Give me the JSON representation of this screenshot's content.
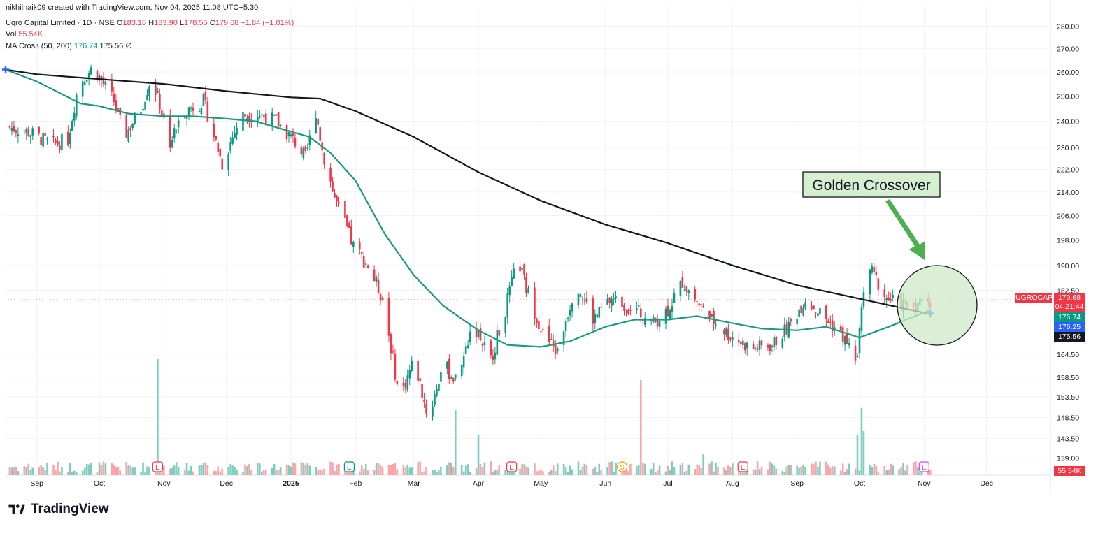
{
  "header": {
    "credit": "nikhilnaik09 created with TradingView.com, Nov 04, 2025 11:08 UTC+5:30",
    "symbol_line": {
      "name": "Ugro Capital Limited · 1D · NSE",
      "o_label": "O",
      "o_value": "183.16",
      "h_label": "H",
      "h_value": "183.90",
      "l_label": "L",
      "l_value": "178.55",
      "c_label": "C",
      "c_value": "179.68",
      "change": "−1.84 (−1.01%)"
    },
    "vol_line": {
      "label": "Vol",
      "value": "55.54K"
    },
    "ma_line": {
      "label": "MA Cross (50, 200)",
      "fast": "176.74",
      "slow": "175.56",
      "icon": "∅"
    }
  },
  "logo": {
    "text": "TradingView",
    "icon": "tradingview-logo-icon"
  },
  "annotation": {
    "text": "Golden Crossover",
    "fill": "#d6efd0",
    "arrow_color": "#4caf50",
    "circle_fill": "#cfe9c8"
  },
  "price_tags": {
    "symbol": "UGROCAP",
    "price": "179.68",
    "countdown": "04:21:44",
    "ma50": "176.74",
    "ma50_b": "176.25",
    "ma200": "175.56",
    "volume": "55.54K"
  },
  "colors": {
    "up": "#089981",
    "down": "#f23645",
    "ma50": "#1a9a80",
    "ma200": "#131722",
    "vol_up": "#7fcdc0",
    "vol_down": "#f7a6a9",
    "ma50_tag": "#089981",
    "ma50b_tag": "#2962ff",
    "ma200_tag": "#131722"
  },
  "chart_data": {
    "type": "candlestick",
    "title": "Ugro Capital Limited · 1D · NSE",
    "y_ticks": [
      "280.00",
      "270.00",
      "260.00",
      "250.00",
      "240.00",
      "230.00",
      "222.00",
      "214.00",
      "206.00",
      "198.00",
      "190.00",
      "182.50",
      "164.50",
      "158.50",
      "153.50",
      "148.50",
      "143.50",
      "139.00"
    ],
    "y_tick_values": [
      280,
      270,
      260,
      250,
      240,
      230,
      222,
      214,
      206,
      198,
      190,
      182.5,
      164.5,
      158.5,
      153.5,
      148.5,
      143.5,
      139
    ],
    "log_scale": true,
    "ylim": [
      136,
      284
    ],
    "x_ticks": [
      "Sep",
      "Oct",
      "Nov",
      "Dec",
      "2025",
      "Feb",
      "Mar",
      "Apr",
      "May",
      "Jun",
      "Jul",
      "Aug",
      "Sep",
      "Oct",
      "Nov",
      "Dec"
    ],
    "x_tick_dates": [
      "2024-09-01",
      "2024-10-01",
      "2024-11-01",
      "2024-12-01",
      "2025-01-01",
      "2025-02-01",
      "2025-03-01",
      "2025-04-01",
      "2025-05-01",
      "2025-06-01",
      "2025-07-01",
      "2025-08-01",
      "2025-09-01",
      "2025-10-01",
      "2025-11-01",
      "2025-12-01"
    ],
    "x_range": [
      "2024-08-17",
      "2025-12-31"
    ],
    "price_keypoints": [
      {
        "date": "2024-08-17",
        "close": 238
      },
      {
        "date": "2024-08-28",
        "close": 236
      },
      {
        "date": "2024-09-08",
        "close": 231
      },
      {
        "date": "2024-09-16",
        "close": 233
      },
      {
        "date": "2024-09-21",
        "close": 255
      },
      {
        "date": "2024-09-28",
        "close": 262
      },
      {
        "date": "2024-10-08",
        "close": 248
      },
      {
        "date": "2024-10-13",
        "close": 234
      },
      {
        "date": "2024-10-21",
        "close": 245
      },
      {
        "date": "2024-10-26",
        "close": 258
      },
      {
        "date": "2024-11-04",
        "close": 232
      },
      {
        "date": "2024-11-11",
        "close": 244
      },
      {
        "date": "2024-11-20",
        "close": 248
      },
      {
        "date": "2024-11-29",
        "close": 224
      },
      {
        "date": "2024-12-08",
        "close": 242
      },
      {
        "date": "2024-12-16",
        "close": 243
      },
      {
        "date": "2024-12-25",
        "close": 240
      },
      {
        "date": "2025-01-03",
        "close": 232
      },
      {
        "date": "2025-01-08",
        "close": 226
      },
      {
        "date": "2025-01-13",
        "close": 244
      },
      {
        "date": "2025-01-16",
        "close": 229
      },
      {
        "date": "2025-01-22",
        "close": 212
      },
      {
        "date": "2025-01-31",
        "close": 196
      },
      {
        "date": "2025-02-07",
        "close": 190
      },
      {
        "date": "2025-02-14",
        "close": 180
      },
      {
        "date": "2025-02-22",
        "close": 153
      },
      {
        "date": "2025-03-01",
        "close": 163
      },
      {
        "date": "2025-03-08",
        "close": 148
      },
      {
        "date": "2025-03-15",
        "close": 162
      },
      {
        "date": "2025-03-22",
        "close": 157
      },
      {
        "date": "2025-03-29",
        "close": 173
      },
      {
        "date": "2025-04-07",
        "close": 163
      },
      {
        "date": "2025-04-14",
        "close": 177
      },
      {
        "date": "2025-04-20",
        "close": 192
      },
      {
        "date": "2025-04-24",
        "close": 183
      },
      {
        "date": "2025-05-02",
        "close": 170
      },
      {
        "date": "2025-05-09",
        "close": 165
      },
      {
        "date": "2025-05-18",
        "close": 185
      },
      {
        "date": "2025-05-26",
        "close": 174
      },
      {
        "date": "2025-06-04",
        "close": 180
      },
      {
        "date": "2025-06-15",
        "close": 177
      },
      {
        "date": "2025-06-24",
        "close": 173
      },
      {
        "date": "2025-07-01",
        "close": 177
      },
      {
        "date": "2025-07-08",
        "close": 185
      },
      {
        "date": "2025-07-20",
        "close": 175
      },
      {
        "date": "2025-07-30",
        "close": 170
      },
      {
        "date": "2025-08-10",
        "close": 166
      },
      {
        "date": "2025-08-20",
        "close": 167
      },
      {
        "date": "2025-08-28",
        "close": 172
      },
      {
        "date": "2025-09-05",
        "close": 180
      },
      {
        "date": "2025-09-12",
        "close": 176
      },
      {
        "date": "2025-09-22",
        "close": 170
      },
      {
        "date": "2025-09-30",
        "close": 163
      },
      {
        "date": "2025-10-03",
        "close": 184
      },
      {
        "date": "2025-10-06",
        "close": 189
      },
      {
        "date": "2025-10-14",
        "close": 180
      },
      {
        "date": "2025-10-25",
        "close": 178
      },
      {
        "date": "2025-11-04",
        "close": 179.68
      }
    ],
    "series": [
      {
        "name": "MA 50",
        "points": [
          {
            "date": "2024-08-17",
            "value": 261
          },
          {
            "date": "2024-09-01",
            "value": 256
          },
          {
            "date": "2024-09-15",
            "value": 250
          },
          {
            "date": "2024-09-22",
            "value": 247
          },
          {
            "date": "2024-10-01",
            "value": 246
          },
          {
            "date": "2024-10-15",
            "value": 243
          },
          {
            "date": "2024-11-01",
            "value": 242
          },
          {
            "date": "2024-11-15",
            "value": 242
          },
          {
            "date": "2024-12-01",
            "value": 241
          },
          {
            "date": "2024-12-15",
            "value": 240
          },
          {
            "date": "2025-01-01",
            "value": 236
          },
          {
            "date": "2025-01-10",
            "value": 234
          },
          {
            "date": "2025-01-20",
            "value": 228
          },
          {
            "date": "2025-02-01",
            "value": 218
          },
          {
            "date": "2025-02-15",
            "value": 200
          },
          {
            "date": "2025-03-01",
            "value": 187
          },
          {
            "date": "2025-03-15",
            "value": 178
          },
          {
            "date": "2025-04-01",
            "value": 171
          },
          {
            "date": "2025-04-15",
            "value": 167
          },
          {
            "date": "2025-05-01",
            "value": 166.5
          },
          {
            "date": "2025-05-15",
            "value": 168
          },
          {
            "date": "2025-06-01",
            "value": 172
          },
          {
            "date": "2025-06-15",
            "value": 174
          },
          {
            "date": "2025-07-01",
            "value": 174
          },
          {
            "date": "2025-07-15",
            "value": 175
          },
          {
            "date": "2025-08-01",
            "value": 173
          },
          {
            "date": "2025-08-15",
            "value": 171.5
          },
          {
            "date": "2025-09-01",
            "value": 171
          },
          {
            "date": "2025-09-15",
            "value": 172
          },
          {
            "date": "2025-10-01",
            "value": 169
          },
          {
            "date": "2025-10-15",
            "value": 172
          },
          {
            "date": "2025-11-04",
            "value": 176.74
          }
        ]
      },
      {
        "name": "MA 200",
        "points": [
          {
            "date": "2024-08-17",
            "value": 261
          },
          {
            "date": "2024-09-01",
            "value": 259
          },
          {
            "date": "2024-10-01",
            "value": 257
          },
          {
            "date": "2024-11-01",
            "value": 255
          },
          {
            "date": "2024-12-01",
            "value": 252
          },
          {
            "date": "2025-01-01",
            "value": 249.5
          },
          {
            "date": "2025-01-15",
            "value": 249
          },
          {
            "date": "2025-02-01",
            "value": 244
          },
          {
            "date": "2025-03-01",
            "value": 234
          },
          {
            "date": "2025-04-01",
            "value": 221
          },
          {
            "date": "2025-05-01",
            "value": 211
          },
          {
            "date": "2025-06-01",
            "value": 203
          },
          {
            "date": "2025-07-01",
            "value": 197
          },
          {
            "date": "2025-08-01",
            "value": 190
          },
          {
            "date": "2025-09-01",
            "value": 184
          },
          {
            "date": "2025-10-01",
            "value": 180
          },
          {
            "date": "2025-11-04",
            "value": 175.56
          }
        ]
      }
    ],
    "volume_spikes": [
      {
        "date": "2024-10-29",
        "volume": 100,
        "direction": "up"
      },
      {
        "date": "2025-03-21",
        "volume": 56,
        "direction": "up"
      },
      {
        "date": "2025-04-01",
        "volume": 35,
        "direction": "up"
      },
      {
        "date": "2025-06-18",
        "volume": 82,
        "direction": "down"
      },
      {
        "date": "2025-06-21",
        "volume": 30,
        "direction": "down"
      },
      {
        "date": "2025-07-18",
        "volume": 18,
        "direction": "up"
      },
      {
        "date": "2025-09-30",
        "volume": 35,
        "direction": "up"
      },
      {
        "date": "2025-10-02",
        "volume": 58,
        "direction": "up"
      },
      {
        "date": "2025-10-03",
        "volume": 38,
        "direction": "up"
      }
    ],
    "event_markers": [
      {
        "date": "2024-10-29",
        "label": "E",
        "kind": "earnings-red"
      },
      {
        "date": "2025-01-29",
        "label": "E",
        "kind": "earnings-green"
      },
      {
        "date": "2025-04-17",
        "label": "E",
        "kind": "earnings-red"
      },
      {
        "date": "2025-06-09",
        "label": "S",
        "kind": "split"
      },
      {
        "date": "2025-08-06",
        "label": "E",
        "kind": "earnings-red"
      },
      {
        "date": "2025-11-01",
        "label": "E",
        "kind": "earnings-purple"
      }
    ],
    "crossover_markers": [
      {
        "date": "2024-08-17",
        "value": 261
      },
      {
        "date": "2025-11-04",
        "value": 175.8
      }
    ]
  }
}
